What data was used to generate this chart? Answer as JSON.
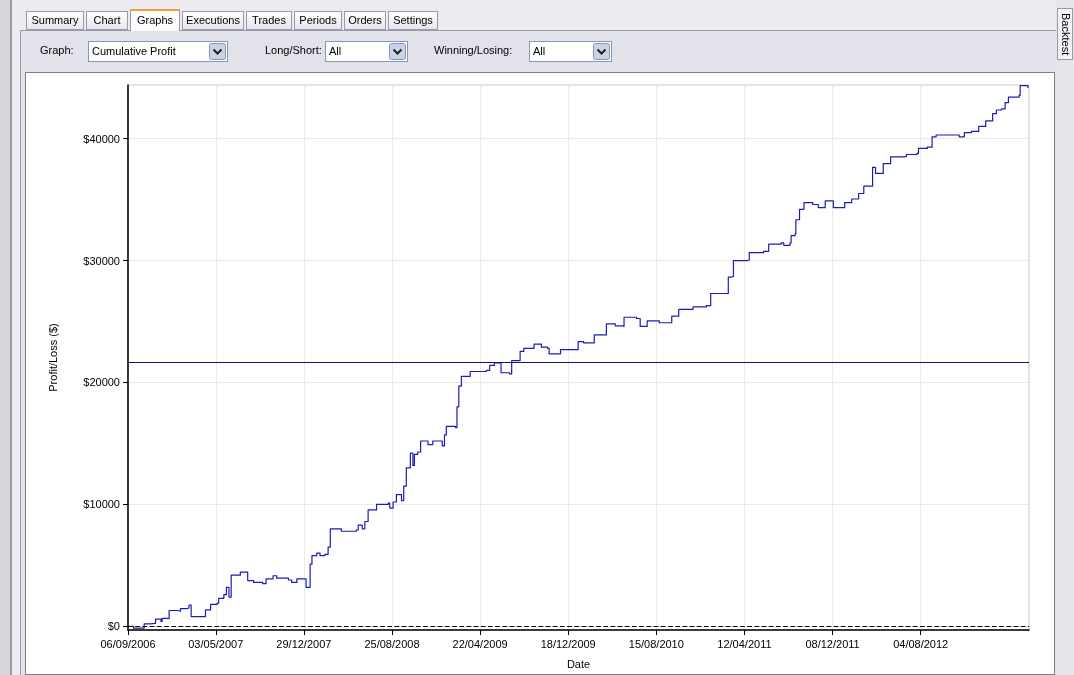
{
  "chart_data": {
    "type": "step",
    "xlabel": "Date",
    "ylabel": "Profit/Loss ($)",
    "annotations": [
      "Summary",
      "Chart",
      "Graphs",
      "Executions",
      "Trades",
      "Periods",
      "Orders",
      "Settings",
      "Graph:",
      "Cumulative Profit",
      "Long/Short:",
      "All",
      "Winning/Losing:",
      "All",
      "Backtest"
    ],
    "x": [
      "2006-09-06",
      "2006-09-21",
      "2006-10-20",
      "2006-11-05",
      "2006-11-20",
      "2006-12-05",
      "2006-12-08",
      "2006-12-27",
      "2007-01-18",
      "2007-01-27",
      "2007-02-14",
      "2007-02-19",
      "2007-02-25",
      "2007-03-31",
      "2007-04-05",
      "2007-04-19",
      "2007-05-07",
      "2007-05-11",
      "2007-05-25",
      "2007-06-01",
      "2007-06-08",
      "2007-06-14",
      "2007-07-09",
      "2007-07-29",
      "2007-08-14",
      "2007-09-08",
      "2007-09-17",
      "2007-10-06",
      "2007-10-16",
      "2007-11-17",
      "2007-11-26",
      "2007-12-10",
      "2008-01-01",
      "2008-01-04",
      "2008-01-11",
      "2008-01-15",
      "2008-01-20",
      "2008-02-02",
      "2008-02-11",
      "2008-02-24",
      "2008-03-04",
      "2008-03-10",
      "2008-04-09",
      "2008-05-20",
      "2008-05-25",
      "2008-06-05",
      "2008-06-12",
      "2008-06-21",
      "2008-07-14",
      "2008-08-15",
      "2008-08-19",
      "2008-08-28",
      "2008-09-06",
      "2008-09-20",
      "2008-09-26",
      "2008-10-03",
      "2008-10-14",
      "2008-10-21",
      "2008-10-25",
      "2008-11-03",
      "2008-11-11",
      "2008-12-01",
      "2008-12-14",
      "2009-01-03",
      "2009-01-09",
      "2009-01-15",
      "2009-01-20",
      "2009-02-14",
      "2009-02-18",
      "2009-02-23",
      "2009-03-02",
      "2009-03-26",
      "2009-05-09",
      "2009-05-18",
      "2009-05-31",
      "2009-06-18",
      "2009-07-11",
      "2009-07-17",
      "2009-08-09",
      "2009-08-19",
      "2009-09-12",
      "2009-09-16",
      "2009-10-01",
      "2009-10-06",
      "2009-10-23",
      "2009-10-27",
      "2009-11-23",
      "2009-11-27",
      "2009-12-31",
      "2010-01-14",
      "2010-01-29",
      "2010-02-27",
      "2010-03-18",
      "2010-04-01",
      "2010-04-25",
      "2010-05-15",
      "2010-05-19",
      "2010-06-22",
      "2010-07-02",
      "2010-07-21",
      "2010-08-19",
      "2010-08-23",
      "2010-09-16",
      "2010-09-26",
      "2010-10-15",
      "2010-11-23",
      "2010-12-29",
      "2011-01-10",
      "2011-02-22",
      "2011-02-27",
      "2011-03-08",
      "2011-03-13",
      "2011-04-21",
      "2011-04-25",
      "2011-06-03",
      "2011-06-17",
      "2011-07-21",
      "2011-07-28",
      "2011-08-14",
      "2011-08-17",
      "2011-08-28",
      "2011-08-30",
      "2011-09-09",
      "2011-09-21",
      "2011-10-15",
      "2011-10-30",
      "2011-11-18",
      "2011-12-07",
      "2011-12-10",
      "2012-01-10",
      "2012-01-29",
      "2012-02-17",
      "2012-03-02",
      "2012-03-17",
      "2012-03-26",
      "2012-04-03",
      "2012-04-10",
      "2012-04-24",
      "2012-05-14",
      "2012-06-21",
      "2012-06-26",
      "2012-07-25",
      "2012-07-29",
      "2012-08-22",
      "2012-09-04",
      "2012-09-15",
      "2012-11-12",
      "2012-11-17",
      "2012-12-01",
      "2012-12-20",
      "2013-01-09",
      "2013-01-28",
      "2013-02-16",
      "2013-02-26",
      "2013-03-12",
      "2013-03-22",
      "2013-03-31",
      "2013-04-29",
      "2013-05-02",
      "2013-05-18",
      "2013-05-23"
    ],
    "series": [
      {
        "color": "#1c1cb4",
        "values": [
          0,
          -150,
          200,
          250,
          600,
          400,
          650,
          1300,
          1250,
          1450,
          1500,
          1750,
          800,
          800,
          1350,
          1800,
          1900,
          2300,
          2600,
          3200,
          2400,
          4200,
          4450,
          3750,
          3600,
          3500,
          3900,
          4150,
          3950,
          3800,
          3600,
          3900,
          3900,
          3200,
          3200,
          5100,
          5800,
          6000,
          5800,
          5900,
          6500,
          8000,
          7800,
          7900,
          8300,
          8000,
          8600,
          9550,
          10000,
          10100,
          9700,
          10200,
          10800,
          10300,
          11500,
          13000,
          14200,
          13200,
          14100,
          14300,
          15200,
          14900,
          15200,
          15200,
          14800,
          15700,
          16400,
          16300,
          18000,
          19700,
          20500,
          20900,
          21000,
          21400,
          21600,
          20800,
          20700,
          21800,
          22550,
          22800,
          22800,
          23150,
          23150,
          22900,
          22800,
          22350,
          22350,
          22700,
          22700,
          23350,
          23250,
          23900,
          23900,
          24800,
          24650,
          24600,
          25350,
          25250,
          24600,
          25050,
          25050,
          24900,
          24900,
          25450,
          26000,
          26200,
          26300,
          27300,
          27300,
          28650,
          28700,
          30000,
          30050,
          30650,
          30750,
          31350,
          31450,
          31250,
          31450,
          32050,
          32200,
          33350,
          34200,
          34750,
          34600,
          34350,
          34900,
          34900,
          34350,
          34750,
          35050,
          35500,
          36100,
          36100,
          37650,
          37150,
          37150,
          37950,
          38500,
          38550,
          38700,
          38800,
          39200,
          39300,
          40150,
          40300,
          40300,
          40150,
          40500,
          40600,
          41000,
          41450,
          42050,
          42350,
          42450,
          42950,
          43400,
          43550,
          44350,
          44350,
          44150
        ]
      }
    ],
    "xlim": [
      "2006-09-06",
      "2013-05-26"
    ],
    "xticks": [
      {
        "value": "2006-09-06",
        "label": "06/09/2006"
      },
      {
        "value": "2007-05-03",
        "label": "03/05/2007"
      },
      {
        "value": "2007-12-29",
        "label": "29/12/2007"
      },
      {
        "value": "2008-08-25",
        "label": "25/08/2008"
      },
      {
        "value": "2009-04-22",
        "label": "22/04/2009"
      },
      {
        "value": "2009-12-18",
        "label": "18/12/2009"
      },
      {
        "value": "2010-08-15",
        "label": "15/08/2010"
      },
      {
        "value": "2011-04-12",
        "label": "12/04/2011"
      },
      {
        "value": "2011-12-08",
        "label": "08/12/2011"
      },
      {
        "value": "2012-08-04",
        "label": "04/08/2012"
      }
    ],
    "ylim": [
      -300,
      44400
    ],
    "yticks": [
      {
        "value": 0,
        "label": "$0"
      },
      {
        "value": 10000,
        "label": "$10000"
      },
      {
        "value": 20000,
        "label": "$20000"
      },
      {
        "value": 30000,
        "label": "$30000"
      },
      {
        "value": 40000,
        "label": "$40000"
      }
    ],
    "ref_lines": [
      {
        "axis": "y",
        "value": 21700,
        "color": "#14146e",
        "line_style": "solid"
      },
      {
        "axis": "y",
        "value": 0,
        "color": "#000000",
        "line_style": "dashed"
      }
    ],
    "grid": true
  }
}
